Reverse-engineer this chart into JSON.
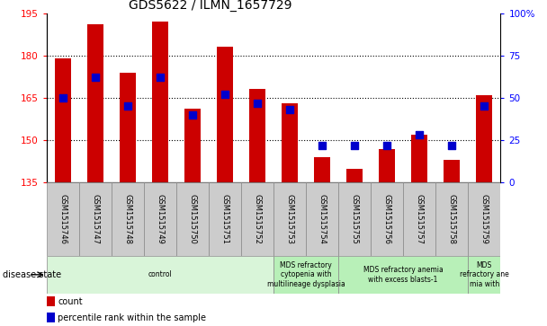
{
  "title": "GDS5622 / ILMN_1657729",
  "samples": [
    "GSM1515746",
    "GSM1515747",
    "GSM1515748",
    "GSM1515749",
    "GSM1515750",
    "GSM1515751",
    "GSM1515752",
    "GSM1515753",
    "GSM1515754",
    "GSM1515755",
    "GSM1515756",
    "GSM1515757",
    "GSM1515758",
    "GSM1515759"
  ],
  "counts": [
    179,
    191,
    174,
    192,
    161,
    183,
    168,
    163,
    144,
    140,
    147,
    152,
    143,
    166
  ],
  "percentile_ranks": [
    50,
    62,
    45,
    62,
    40,
    52,
    47,
    43,
    22,
    22,
    22,
    28,
    22,
    45
  ],
  "ymin": 135,
  "ymax": 195,
  "yticks": [
    135,
    150,
    165,
    180,
    195
  ],
  "right_yticks": [
    0,
    25,
    50,
    75,
    100
  ],
  "disease_groups": [
    {
      "label": "control",
      "start": 0,
      "end": 7,
      "color": "#d9f5d9"
    },
    {
      "label": "MDS refractory\ncytopenia with\nmultilineage dysplasia",
      "start": 7,
      "end": 9,
      "color": "#b8f0b8"
    },
    {
      "label": "MDS refractory anemia\nwith excess blasts-1",
      "start": 9,
      "end": 13,
      "color": "#b8f0b8"
    },
    {
      "label": "MDS\nrefractory ane\nmia with",
      "start": 13,
      "end": 14,
      "color": "#b8f0b8"
    }
  ],
  "bar_color": "#cc0000",
  "dot_color": "#0000cc",
  "bar_width": 0.5,
  "dot_size": 35,
  "background_color": "#ffffff",
  "tick_label_bg": "#cccccc"
}
